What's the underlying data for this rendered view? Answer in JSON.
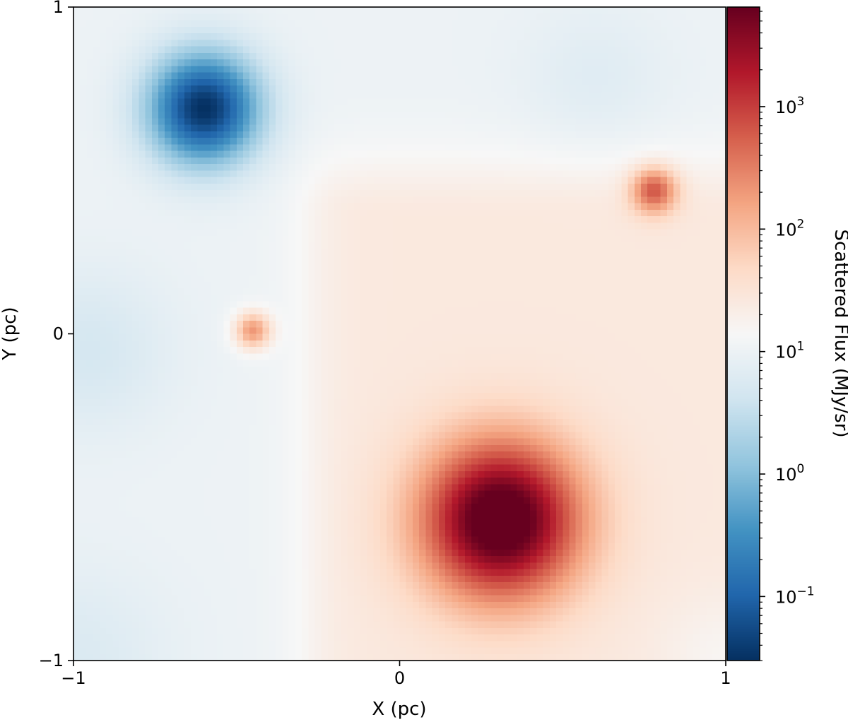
{
  "chart_data": {
    "type": "heatmap",
    "xlabel": "X (pc)",
    "ylabel": "Y (pc)",
    "xlim": [
      -1,
      1
    ],
    "ylim": [
      -1,
      1
    ],
    "x_ticks": [
      {
        "value": -1,
        "label": "−1"
      },
      {
        "value": 0,
        "label": "0"
      },
      {
        "value": 1,
        "label": "1"
      }
    ],
    "y_ticks": [
      {
        "value": -1,
        "label": "−1"
      },
      {
        "value": 0,
        "label": "0"
      },
      {
        "value": 1,
        "label": "1"
      }
    ],
    "colormap": "RdBu_r",
    "colorbar": {
      "label": "Scattered Flux (MJy/sr)",
      "scale": "log",
      "range": [
        0.03,
        6500
      ],
      "ticks": [
        {
          "value": 0.1,
          "base": "10",
          "exp": "−1"
        },
        {
          "value": 1,
          "base": "10",
          "exp": "0"
        },
        {
          "value": 10,
          "base": "10",
          "exp": "1"
        },
        {
          "value": 100,
          "base": "10",
          "exp": "2"
        },
        {
          "value": 1000,
          "base": "10",
          "exp": "3"
        }
      ]
    },
    "background_flux": 10,
    "features": [
      {
        "type": "minimum",
        "x": -0.6,
        "y": 0.69,
        "flux": 0.03,
        "sigma": 0.12
      },
      {
        "type": "point_source",
        "x": 0.31,
        "y": -0.57,
        "flux": 6000,
        "sigma": 0.17
      },
      {
        "type": "point_source",
        "x": 0.78,
        "y": 0.44,
        "flux": 300,
        "sigma": 0.05
      },
      {
        "type": "point_source",
        "x": -0.45,
        "y": 0.01,
        "flux": 200,
        "sigma": 0.04
      }
    ]
  }
}
